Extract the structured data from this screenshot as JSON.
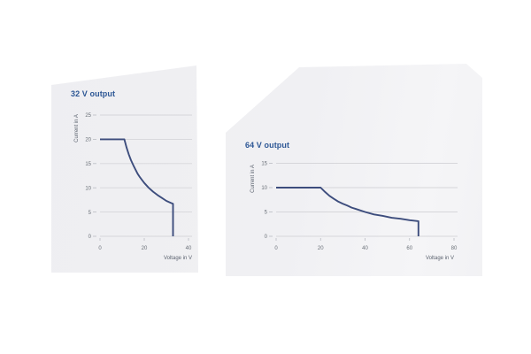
{
  "page": {
    "background": "#ffffff",
    "panel_background": "#efeff1"
  },
  "colors": {
    "curve": "#3d4d7d",
    "title": "#2d5795",
    "grid": "#d6d6da",
    "tick_mark": "#b9bcc2",
    "tick_label": "#6a7078",
    "axis_label": "#5d6470"
  },
  "chart_data": [
    {
      "type": "line",
      "title": "32 V output",
      "xlabel": "Voltage in V",
      "ylabel": "Current in A",
      "xlim": [
        0,
        40
      ],
      "ylim": [
        0,
        25
      ],
      "xticks": [
        0,
        20,
        40
      ],
      "yticks": [
        0,
        5,
        10,
        15,
        20,
        25
      ],
      "grid": "horizontal",
      "legend": "none",
      "series": [
        {
          "name": "output-derating-curve-32v",
          "description": "constant current 20 A up to ~11 V, constant power ~220 W from 11 V to 33 V, vertical cutoff at 33 V",
          "points": [
            [
              0,
              20
            ],
            [
              11,
              20
            ],
            [
              12,
              18.3
            ],
            [
              13,
              16.9
            ],
            [
              14,
              15.7
            ],
            [
              15,
              14.7
            ],
            [
              16,
              13.8
            ],
            [
              17,
              12.9
            ],
            [
              18,
              12.2
            ],
            [
              19,
              11.6
            ],
            [
              20,
              11
            ],
            [
              22,
              10
            ],
            [
              24,
              9.2
            ],
            [
              26,
              8.5
            ],
            [
              28,
              7.9
            ],
            [
              30,
              7.3
            ],
            [
              32,
              6.9
            ],
            [
              33,
              6.7
            ],
            [
              33,
              0
            ]
          ]
        }
      ]
    },
    {
      "type": "line",
      "title": "64 V output",
      "xlabel": "Voltage in V",
      "ylabel": "Current in A",
      "xlim": [
        0,
        80
      ],
      "ylim": [
        0,
        15
      ],
      "xticks": [
        0,
        20,
        40,
        60,
        80
      ],
      "yticks": [
        0,
        5,
        10,
        15
      ],
      "grid": "horizontal",
      "legend": "none",
      "series": [
        {
          "name": "output-derating-curve-64v",
          "description": "constant current 10 A up to 20 V, constant power ~200 W from 20 V to 64 V, vertical cutoff at 64 V",
          "points": [
            [
              0,
              10
            ],
            [
              20,
              10
            ],
            [
              22,
              9.1
            ],
            [
              24,
              8.3
            ],
            [
              26,
              7.7
            ],
            [
              28,
              7.1
            ],
            [
              30,
              6.7
            ],
            [
              32,
              6.3
            ],
            [
              34,
              5.9
            ],
            [
              36,
              5.6
            ],
            [
              40,
              5
            ],
            [
              44,
              4.5
            ],
            [
              48,
              4.2
            ],
            [
              52,
              3.8
            ],
            [
              56,
              3.6
            ],
            [
              60,
              3.3
            ],
            [
              64,
              3.1
            ],
            [
              64,
              0
            ]
          ]
        }
      ]
    }
  ]
}
